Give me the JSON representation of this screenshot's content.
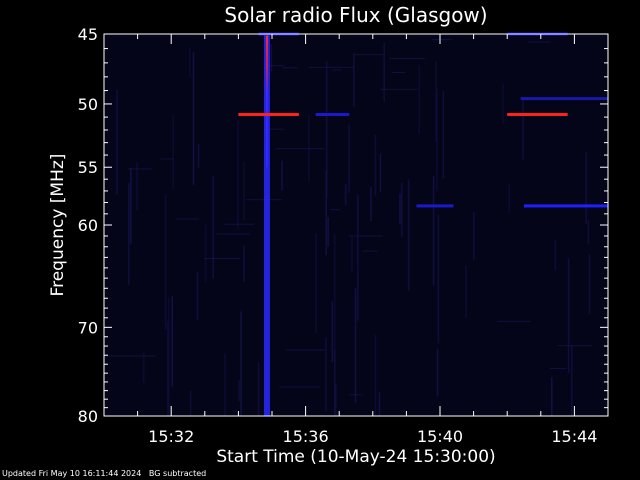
{
  "chart_data": {
    "type": "heatmap",
    "title": "Solar radio Flux (Glasgow)",
    "xlabel": "Start Time (10-May-24 15:30:00)",
    "ylabel": "Frequency [MHz]",
    "x_ticks": [
      "15:32",
      "15:36",
      "15:40",
      "15:44"
    ],
    "x_tick_minutes": [
      2,
      6,
      10,
      14
    ],
    "xlim_minutes": [
      0,
      15.0
    ],
    "y_ticks": [
      45,
      50,
      55,
      60,
      70,
      80
    ],
    "ylim": [
      45,
      80
    ],
    "y_scale": "log",
    "background_color": "#05051a",
    "features": [
      {
        "kind": "vertical_burst",
        "minute": 4.85,
        "freq_range": [
          45,
          80
        ],
        "color": "#2a2aff",
        "core_color": "#ff2020",
        "core_freq_range": [
          45,
          55
        ]
      },
      {
        "kind": "horizontal_band",
        "freq": 50.8,
        "minute_range": [
          4.0,
          5.8
        ],
        "color": "#ff2020"
      },
      {
        "kind": "horizontal_band",
        "freq": 50.8,
        "minute_range": [
          12.0,
          13.8
        ],
        "color": "#ff2020"
      },
      {
        "kind": "horizontal_band",
        "freq": 58.3,
        "minute_range": [
          12.5,
          15.0
        ],
        "color": "#2020ff"
      },
      {
        "kind": "horizontal_band",
        "freq": 58.3,
        "minute_range": [
          9.3,
          10.4
        ],
        "color": "#1a1acc"
      },
      {
        "kind": "horizontal_band",
        "freq": 49.6,
        "minute_range": [
          12.4,
          15.0
        ],
        "color": "#1a1aaa"
      },
      {
        "kind": "horizontal_band",
        "freq": 50.8,
        "minute_range": [
          6.3,
          7.3
        ],
        "color": "#1a1acc"
      },
      {
        "kind": "horizontal_band",
        "freq": 45.0,
        "minute_range": [
          4.6,
          5.8
        ],
        "color": "#1a1acc"
      },
      {
        "kind": "horizontal_band",
        "freq": 45.0,
        "minute_range": [
          12.0,
          13.8
        ],
        "color": "#1a1acc"
      }
    ]
  },
  "footer": {
    "text": "Updated Fri May 10 16:11:44 2024   BG subtracted"
  }
}
